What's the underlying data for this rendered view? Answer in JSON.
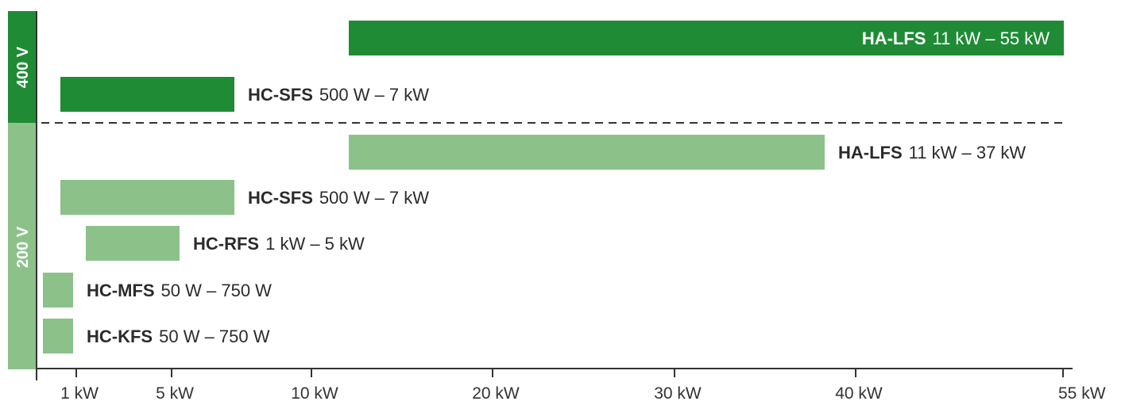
{
  "chart_data": {
    "type": "bar",
    "orientation": "horizontal",
    "title": "",
    "xlabel": "",
    "ylabel": "",
    "x_ticks": [
      "1 kW",
      "5 kW",
      "10 kW",
      "20 kW",
      "30 kW",
      "40 kW",
      "55 kW"
    ],
    "voltage_groups": [
      {
        "label": "400 V",
        "color": "#1f8b35"
      },
      {
        "label": "200 V",
        "color": "#8cc28a"
      }
    ],
    "series": [
      {
        "group": "400 V",
        "name": "HA-LFS",
        "range": "11 kW – 55 kW",
        "start_kw": 11,
        "end_kw": 55
      },
      {
        "group": "400 V",
        "name": "HC-SFS",
        "range": "500 W – 7 kW",
        "start_kw": 0.5,
        "end_kw": 7
      },
      {
        "group": "200 V",
        "name": "HA-LFS",
        "range": "11 kW – 37 kW",
        "start_kw": 11,
        "end_kw": 37
      },
      {
        "group": "200 V",
        "name": "HC-SFS",
        "range": "500 W – 7 kW",
        "start_kw": 0.5,
        "end_kw": 7
      },
      {
        "group": "200 V",
        "name": "HC-RFS",
        "range": "1 kW – 5 kW",
        "start_kw": 1,
        "end_kw": 5
      },
      {
        "group": "200 V",
        "name": "HC-MFS",
        "range": "50 W – 750 W",
        "start_kw": 0.05,
        "end_kw": 0.75
      },
      {
        "group": "200 V",
        "name": "HC-KFS",
        "range": "50 W – 750 W",
        "start_kw": 0.05,
        "end_kw": 0.75
      }
    ],
    "grid": false,
    "legend": "none"
  }
}
